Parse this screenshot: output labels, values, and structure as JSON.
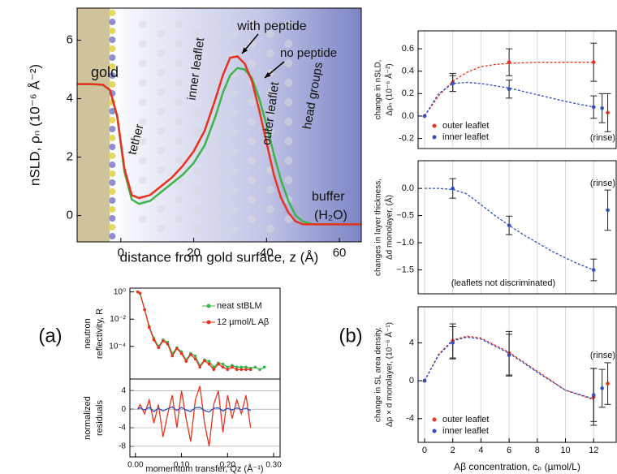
{
  "chart_data": [
    {
      "type": "line",
      "xlabel": "distance from gold surface, z (Å)",
      "ylabel": [
        "nSLD, ρₙ (10⁻⁶ Å⁻²)"
      ],
      "x": [
        -12,
        -8,
        -5,
        -3,
        -1,
        1,
        3,
        5,
        8,
        11,
        14,
        17,
        20,
        23,
        26,
        28,
        30,
        32,
        34,
        36,
        38,
        40,
        42,
        44,
        46,
        48,
        50,
        53,
        57,
        62,
        66
      ],
      "series": [
        {
          "color": "#3cb44b",
          "values": [
            4.5,
            4.5,
            4.48,
            4.3,
            3.4,
            1.5,
            0.55,
            0.4,
            0.5,
            0.8,
            1.1,
            1.4,
            1.8,
            2.4,
            3.4,
            4.2,
            4.8,
            5.05,
            5.0,
            4.7,
            4.0,
            3.1,
            2.1,
            1.2,
            0.5,
            0.0,
            -0.2,
            -0.3,
            -0.3,
            -0.3,
            -0.3
          ]
        },
        {
          "color": "#e8321e",
          "values": [
            4.5,
            4.5,
            4.48,
            4.3,
            3.4,
            1.6,
            0.7,
            0.6,
            0.7,
            1.0,
            1.3,
            1.7,
            2.2,
            2.9,
            4.0,
            4.8,
            5.4,
            5.45,
            5.2,
            4.6,
            3.6,
            2.5,
            1.4,
            0.6,
            0.1,
            -0.2,
            -0.3,
            -0.3,
            -0.3,
            -0.3,
            -0.3
          ]
        }
      ],
      "xlim": [
        -12,
        66
      ],
      "ylim": [
        -0.9,
        7.1
      ],
      "xticks": [
        0,
        20,
        40,
        60
      ],
      "yticks": [
        0,
        2,
        4,
        6
      ],
      "annotations": [
        "gold",
        "tether",
        "inner leaflet",
        "outer leaflet",
        "head groups",
        "buffer",
        "(H₂O)",
        "with peptide",
        "no peptide"
      ]
    },
    {
      "type": "line",
      "log_y": true,
      "marker": true,
      "ylabel": [
        "neutron",
        "reflectivity, R"
      ],
      "legend": "upper right",
      "x": [
        0.005,
        0.01,
        0.02,
        0.03,
        0.04,
        0.05,
        0.06,
        0.07,
        0.08,
        0.09,
        0.1,
        0.11,
        0.12,
        0.13,
        0.14,
        0.15,
        0.16,
        0.17,
        0.18,
        0.19,
        0.2,
        0.21,
        0.22,
        0.23,
        0.24,
        0.25,
        0.26,
        0.27,
        0.28
      ],
      "series": [
        {
          "name": "neat stBLM",
          "color": "#3cb44b",
          "values": [
            1,
            0.8,
            0.05,
            0.003,
            0.0004,
            0.0001,
            0.0003,
            0.0002,
            3e-05,
            8e-05,
            4e-05,
            1e-05,
            3e-05,
            2e-05,
            4e-06,
            1e-05,
            8e-06,
            3e-06,
            6e-06,
            5e-06,
            3e-06,
            4e-06,
            3e-06,
            3e-06,
            3e-06,
            2.5e-06,
            3e-06,
            2e-06,
            3e-06
          ]
        },
        {
          "name": "12 µmol/L Aβ",
          "color": "#e8321e",
          "values": [
            1,
            0.8,
            0.05,
            0.0025,
            0.0003,
            8e-05,
            0.00025,
            0.00015,
            2e-05,
            7e-05,
            3e-05,
            8e-06,
            2.5e-05,
            1.2e-05,
            3e-06,
            9e-06,
            5e-06,
            2e-06,
            5e-06,
            3e-06,
            2e-06,
            3e-06,
            2e-06,
            2e-06,
            2e-06,
            2e-06,
            null,
            null,
            null
          ]
        }
      ],
      "xlim": [
        -0.012,
        0.314
      ],
      "ylim": [
        4e-07,
        1.9
      ],
      "yticks": [
        {
          "value": 1,
          "label": "10⁰"
        },
        {
          "value": 0.01,
          "label": "10⁻²"
        },
        {
          "value": 0.0001,
          "label": "10⁻⁴"
        }
      ]
    },
    {
      "type": "line",
      "ylabel": [
        "normalized",
        "residuals"
      ],
      "xlabel": "momemtum transfer, Qz (Å⁻¹)",
      "grid": "y",
      "x": [
        0.005,
        0.01,
        0.02,
        0.03,
        0.04,
        0.05,
        0.06,
        0.07,
        0.08,
        0.09,
        0.1,
        0.11,
        0.12,
        0.13,
        0.14,
        0.15,
        0.16,
        0.17,
        0.18,
        0.19,
        0.2,
        0.21,
        0.22,
        0.23,
        0.24,
        0.25
      ],
      "series": [
        {
          "color": "#e8321e",
          "values": [
            0,
            1,
            -1,
            2,
            -3,
            1,
            -6,
            -1,
            3,
            -4,
            4,
            -2,
            -7,
            2,
            5,
            -3,
            -8,
            1,
            4,
            -5,
            3,
            -2,
            2,
            -1,
            3,
            -4
          ]
        },
        {
          "color": "#3050c0",
          "values": [
            0,
            0.3,
            -0.2,
            0.4,
            -0.5,
            0.2,
            -0.4,
            0.1,
            0.5,
            -0.3,
            0.4,
            -0.2,
            -0.5,
            0.3,
            0.4,
            -0.3,
            -0.6,
            0.2,
            0.3,
            -0.4,
            0.2,
            -0.2,
            0.3,
            -0.1,
            0.2,
            -0.3
          ]
        }
      ],
      "xlim": [
        -0.012,
        0.314
      ],
      "ylim": [
        -10.3,
        6.5
      ],
      "yticks": [
        4,
        0,
        -4,
        -8
      ],
      "xticks": [
        {
          "value": 0,
          "label": "0.00"
        },
        {
          "value": 0.1,
          "label": "0.10"
        },
        {
          "value": 0.2,
          "label": "0.20"
        },
        {
          "value": 0.3,
          "label": "0.30"
        }
      ]
    },
    {
      "type": "scatter",
      "ylabel": [
        "change in nSLD,",
        "Δρₙ (10⁻⁶ Å⁻²)"
      ],
      "legend": "lower left",
      "grid": "x",
      "series": [
        {
          "name": "outer leaflet",
          "color": "#e8321e",
          "x": [
            0,
            2,
            6,
            12,
            13
          ],
          "values": [
            0,
            0.3,
            0.48,
            0.48,
            0.03
          ],
          "errors": [
            0,
            0.08,
            0.12,
            0.17,
            0.17
          ]
        },
        {
          "name": "inner leaflet",
          "color": "#3050c0",
          "x": [
            0,
            2,
            6,
            12,
            12.6
          ],
          "values": [
            0,
            0.29,
            0.24,
            0.08,
            0.07
          ],
          "errors": [
            0,
            0.07,
            0.08,
            0.1,
            0.13
          ]
        }
      ],
      "fits": [
        {
          "color": "#e8321e",
          "x": [
            0,
            1,
            2,
            3,
            4,
            5,
            6,
            8,
            10,
            12
          ],
          "values": [
            0,
            0.18,
            0.31,
            0.39,
            0.44,
            0.46,
            0.47,
            0.48,
            0.48,
            0.48
          ]
        },
        {
          "color": "#3050c0",
          "x": [
            0,
            1,
            2,
            3,
            4,
            5,
            6,
            8,
            10,
            12
          ],
          "values": [
            0,
            0.2,
            0.29,
            0.3,
            0.29,
            0.27,
            0.25,
            0.19,
            0.13,
            0.08
          ]
        }
      ],
      "xlim": [
        -0.46,
        13.6
      ],
      "ylim": [
        -0.29,
        0.76
      ],
      "yticks": [
        0.6,
        0.4,
        0.2,
        {
          "value": 0,
          "label": "0.0"
        },
        -0.2
      ],
      "annotations": [
        "(rinse)"
      ]
    },
    {
      "type": "scatter",
      "ylabel": [
        "changes in layer thickness,",
        "Δd monolayer, (Å)"
      ],
      "grid": "x",
      "series": [
        {
          "color": "#3050c0",
          "x": [
            2,
            6,
            12,
            13
          ],
          "values": [
            0,
            -0.68,
            -1.5,
            -0.4
          ],
          "errors": [
            0.18,
            0.17,
            0.2,
            0.37
          ]
        }
      ],
      "fits": [
        {
          "color": "#3050c0",
          "x": [
            0,
            1,
            2,
            3,
            4,
            5,
            6,
            7,
            8,
            9,
            10,
            11,
            12
          ],
          "values": [
            0,
            0,
            -0.02,
            -0.1,
            -0.3,
            -0.5,
            -0.68,
            -0.85,
            -1.0,
            -1.15,
            -1.28,
            -1.4,
            -1.5
          ]
        }
      ],
      "xlim": [
        -0.46,
        13.6
      ],
      "ylim": [
        -1.94,
        0.51
      ],
      "yticks": [
        {
          "value": 0,
          "label": "0.0"
        },
        {
          "value": -0.5,
          "label": "−0.5"
        },
        {
          "value": -1,
          "label": "−1.0"
        },
        {
          "value": -1.5,
          "label": "−1.5"
        }
      ],
      "annotations": [
        "(rinse)",
        "(leaflets not discriminated)"
      ]
    },
    {
      "type": "scatter",
      "ylabel": [
        "change in SL area density,",
        "Δρ × d monolayer, (10⁻⁶ Å⁻¹)"
      ],
      "xlabel": "Aβ concentration, cₚ (µmol/L)",
      "legend": "lower left",
      "grid": "x",
      "series": [
        {
          "name": "outer leaflet",
          "color": "#e8321e",
          "x": [
            0,
            2,
            6,
            12,
            13
          ],
          "values": [
            0,
            4.2,
            2.9,
            -1.7,
            -0.3
          ],
          "errors": [
            0,
            1.8,
            2.3,
            3,
            2.2
          ]
        },
        {
          "name": "inner leaflet",
          "color": "#3050c0",
          "x": [
            0,
            2,
            6,
            12,
            12.6
          ],
          "values": [
            0,
            4.0,
            2.7,
            -1.5,
            -0.8
          ],
          "errors": [
            0,
            1.7,
            2.2,
            2.8,
            2
          ]
        }
      ],
      "fits": [
        {
          "color": "#e8321e",
          "x": [
            0,
            1,
            2,
            3,
            4,
            6,
            8,
            10,
            12
          ],
          "values": [
            0,
            2.8,
            4.3,
            4.7,
            4.5,
            3.0,
            1.0,
            -1.0,
            -2.0
          ]
        },
        {
          "color": "#3050c0",
          "x": [
            0,
            1,
            2,
            3,
            4,
            6,
            8,
            10,
            12
          ],
          "values": [
            0,
            2.7,
            4.2,
            4.6,
            4.4,
            2.9,
            0.9,
            -1.0,
            -1.9
          ]
        }
      ],
      "xlim": [
        -0.46,
        13.6
      ],
      "ylim": [
        -6.5,
        7.8
      ],
      "yticks": [
        4,
        0,
        -4
      ],
      "xticks": [
        0,
        2,
        4,
        6,
        8,
        10,
        12
      ],
      "annotations": [
        "(rinse)"
      ]
    }
  ],
  "panel_labels": [
    "(a)",
    "(b)"
  ]
}
